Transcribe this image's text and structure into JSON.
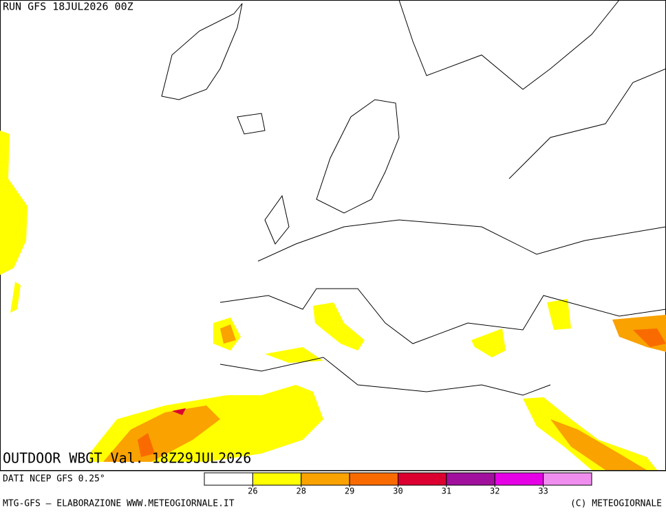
{
  "header": {
    "run": "RUN GFS 18JUL2026 00Z"
  },
  "title": "OUTDOOR WBGT Val. 18Z29JUL2026",
  "source": "DATI NCEP GFS 0.25°",
  "legend": {
    "colors": [
      "#ffffff",
      "#ffff00",
      "#f9a200",
      "#f96b00",
      "#dc0030",
      "#a0109c",
      "#e600e6",
      "#f08ef0"
    ],
    "ticks": [
      26,
      28,
      29,
      30,
      31,
      32,
      33
    ]
  },
  "footer": {
    "left": "MTG-GFS — ELABORAZIONE WWW.METEOGIORNALE.IT",
    "right": "(C) METEOGIORNALE"
  }
}
